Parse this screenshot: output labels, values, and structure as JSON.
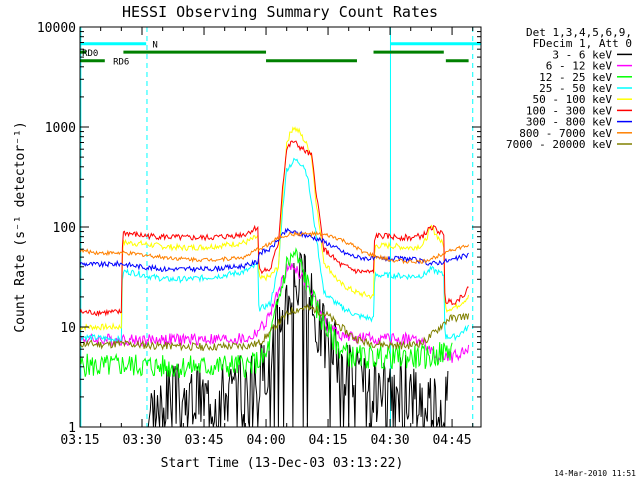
{
  "chart_data": {
    "type": "line",
    "title": "HESSI Observing Summary Count Rates",
    "xlabel": "Start Time (13-Dec-03 03:13:22)",
    "ylabel": "Count Rate (s⁻¹ detector⁻¹)",
    "scale_y": "log",
    "xlim_minutes": [
      195,
      292
    ],
    "ylim": [
      1,
      10000
    ],
    "x_ticks": [
      {
        "t": 195,
        "label": "03:15"
      },
      {
        "t": 210,
        "label": "03:30"
      },
      {
        "t": 225,
        "label": "03:45"
      },
      {
        "t": 240,
        "label": "04:00"
      },
      {
        "t": 255,
        "label": "04:15"
      },
      {
        "t": 270,
        "label": "04:30"
      },
      {
        "t": 285,
        "label": "04:45"
      }
    ],
    "y_ticks": [
      {
        "v": 1,
        "label": "1"
      },
      {
        "v": 10,
        "label": "10"
      },
      {
        "v": 100,
        "label": "100"
      },
      {
        "v": 1000,
        "label": "1000"
      },
      {
        "v": 10000,
        "label": "10000"
      }
    ],
    "legend": {
      "placement": "right",
      "header": [
        "Det 1,3,4,5,6,9,",
        "FDecim 1, Att 0"
      ]
    },
    "series": [
      {
        "name": "3 - 6 keV",
        "color": "#000000",
        "points": [
          [
            211,
            1
          ],
          [
            212,
            1.5
          ],
          [
            216,
            2
          ],
          [
            220,
            2
          ],
          [
            225,
            2
          ],
          [
            230,
            2.3
          ],
          [
            236,
            2.4
          ],
          [
            239,
            3.5
          ],
          [
            242,
            8
          ],
          [
            245,
            20
          ],
          [
            247,
            33
          ],
          [
            249,
            28
          ],
          [
            252,
            12
          ],
          [
            255,
            7
          ],
          [
            258,
            5
          ],
          [
            262,
            3
          ],
          [
            265,
            2
          ],
          [
            268,
            2
          ],
          [
            271,
            2.5
          ],
          [
            275,
            2.3
          ],
          [
            280,
            2
          ],
          [
            284,
            2
          ]
        ]
      },
      {
        "name": "6 - 12 keV",
        "color": "#ff00ff",
        "points": [
          [
            195,
            7.5
          ],
          [
            200,
            7.5
          ],
          [
            205,
            7.5
          ],
          [
            210,
            7.4
          ],
          [
            215,
            7.5
          ],
          [
            220,
            7.5
          ],
          [
            225,
            7.6
          ],
          [
            230,
            7.5
          ],
          [
            236,
            7.6
          ],
          [
            240,
            11
          ],
          [
            243,
            22
          ],
          [
            245,
            38
          ],
          [
            247,
            40
          ],
          [
            249,
            30
          ],
          [
            252,
            18
          ],
          [
            255,
            10
          ],
          [
            258,
            8.5
          ],
          [
            261,
            7.8
          ],
          [
            266,
            7.6
          ],
          [
            270,
            7.6
          ],
          [
            275,
            7.6
          ],
          [
            278,
            7
          ],
          [
            281,
            5
          ],
          [
            285,
            5
          ],
          [
            289,
            6
          ]
        ]
      },
      {
        "name": "12 - 25 keV",
        "color": "#00ff00",
        "points": [
          [
            195,
            4.2
          ],
          [
            200,
            4
          ],
          [
            205,
            4.2
          ],
          [
            210,
            4.1
          ],
          [
            215,
            4
          ],
          [
            220,
            4
          ],
          [
            225,
            4
          ],
          [
            230,
            4.1
          ],
          [
            236,
            4.1
          ],
          [
            240,
            5
          ],
          [
            243,
            18
          ],
          [
            245,
            42
          ],
          [
            247,
            54
          ],
          [
            249,
            35
          ],
          [
            252,
            16
          ],
          [
            255,
            9
          ],
          [
            258,
            6
          ],
          [
            261,
            5
          ],
          [
            266,
            5
          ],
          [
            270,
            5
          ],
          [
            275,
            5
          ],
          [
            280,
            5
          ],
          [
            285,
            6
          ]
        ]
      },
      {
        "name": "25 - 50 keV",
        "color": "#00ffff",
        "points": [
          [
            195,
            8
          ],
          [
            205,
            7.5
          ],
          [
            205.3,
            36
          ],
          [
            208,
            35
          ],
          [
            212,
            32
          ],
          [
            216,
            30
          ],
          [
            220,
            30
          ],
          [
            225,
            31
          ],
          [
            230,
            33
          ],
          [
            235,
            36
          ],
          [
            238,
            42
          ],
          [
            238.3,
            15
          ],
          [
            241,
            17
          ],
          [
            243,
            40
          ],
          [
            244,
            150
          ],
          [
            245,
            380
          ],
          [
            247,
            470
          ],
          [
            249,
            420
          ],
          [
            250,
            330
          ],
          [
            252,
            90
          ],
          [
            254,
            22
          ],
          [
            258,
            16
          ],
          [
            262,
            13
          ],
          [
            266,
            12
          ],
          [
            266.3,
            33
          ],
          [
            270,
            33
          ],
          [
            275,
            32
          ],
          [
            278,
            33
          ],
          [
            280,
            38
          ],
          [
            283,
            33
          ],
          [
            283.3,
            8
          ],
          [
            286,
            8
          ],
          [
            289,
            10
          ]
        ]
      },
      {
        "name": "50 - 100 keV",
        "color": "#ffff00",
        "points": [
          [
            195,
            10
          ],
          [
            205,
            10
          ],
          [
            205.3,
            70
          ],
          [
            210,
            68
          ],
          [
            215,
            64
          ],
          [
            220,
            62
          ],
          [
            225,
            63
          ],
          [
            230,
            66
          ],
          [
            235,
            70
          ],
          [
            238,
            80
          ],
          [
            238.3,
            30
          ],
          [
            241,
            32
          ],
          [
            243,
            40
          ],
          [
            244,
            200
          ],
          [
            245,
            700
          ],
          [
            246.5,
            1000
          ],
          [
            248,
            900
          ],
          [
            250,
            650
          ],
          [
            251,
            520
          ],
          [
            252,
            200
          ],
          [
            254,
            45
          ],
          [
            258,
            27
          ],
          [
            262,
            22
          ],
          [
            266,
            20
          ],
          [
            266.3,
            65
          ],
          [
            270,
            65
          ],
          [
            275,
            62
          ],
          [
            278,
            66
          ],
          [
            280,
            100
          ],
          [
            282,
            75
          ],
          [
            283,
            65
          ],
          [
            283.3,
            15
          ],
          [
            286,
            16
          ],
          [
            289,
            20
          ]
        ]
      },
      {
        "name": "100 - 300 keV",
        "color": "#ff0000",
        "points": [
          [
            195,
            14
          ],
          [
            205,
            14
          ],
          [
            205.3,
            88
          ],
          [
            210,
            82
          ],
          [
            215,
            80
          ],
          [
            220,
            78
          ],
          [
            225,
            78
          ],
          [
            230,
            80
          ],
          [
            235,
            85
          ],
          [
            238,
            100
          ],
          [
            238.3,
            37
          ],
          [
            241,
            37
          ],
          [
            243,
            70
          ],
          [
            244,
            250
          ],
          [
            245,
            600
          ],
          [
            246.5,
            720
          ],
          [
            248,
            640
          ],
          [
            250,
            550
          ],
          [
            251,
            520
          ],
          [
            252,
            250
          ],
          [
            254,
            60
          ],
          [
            258,
            42
          ],
          [
            262,
            36
          ],
          [
            266,
            35
          ],
          [
            266.3,
            82
          ],
          [
            270,
            80
          ],
          [
            275,
            78
          ],
          [
            278,
            82
          ],
          [
            280,
            100
          ],
          [
            282,
            90
          ],
          [
            283,
            80
          ],
          [
            283.3,
            18
          ],
          [
            286,
            18
          ],
          [
            289,
            24
          ]
        ]
      },
      {
        "name": "300 - 800 keV",
        "color": "#0000ff",
        "points": [
          [
            195,
            43
          ],
          [
            200,
            42
          ],
          [
            205,
            43
          ],
          [
            210,
            40
          ],
          [
            215,
            38
          ],
          [
            220,
            38
          ],
          [
            225,
            38
          ],
          [
            230,
            39
          ],
          [
            235,
            41
          ],
          [
            238,
            45
          ],
          [
            238.3,
            55
          ],
          [
            241,
            60
          ],
          [
            243,
            75
          ],
          [
            245,
            92
          ],
          [
            247,
            88
          ],
          [
            250,
            82
          ],
          [
            253,
            75
          ],
          [
            256,
            65
          ],
          [
            259,
            55
          ],
          [
            262,
            50
          ],
          [
            266,
            48
          ],
          [
            270,
            48
          ],
          [
            275,
            48
          ],
          [
            280,
            43
          ],
          [
            283,
            45
          ],
          [
            286,
            48
          ],
          [
            289,
            53
          ]
        ]
      },
      {
        "name": "800 - 7000 keV",
        "color": "#ff8000",
        "points": [
          [
            195,
            58
          ],
          [
            200,
            55
          ],
          [
            205,
            55
          ],
          [
            210,
            53
          ],
          [
            215,
            50
          ],
          [
            220,
            48
          ],
          [
            225,
            47
          ],
          [
            230,
            48
          ],
          [
            235,
            50
          ],
          [
            238,
            60
          ],
          [
            241,
            68
          ],
          [
            243,
            78
          ],
          [
            246,
            85
          ],
          [
            249,
            85
          ],
          [
            252,
            85
          ],
          [
            255,
            82
          ],
          [
            258,
            75
          ],
          [
            261,
            65
          ],
          [
            264,
            55
          ],
          [
            267,
            50
          ],
          [
            270,
            47
          ],
          [
            274,
            45
          ],
          [
            278,
            45
          ],
          [
            281,
            50
          ],
          [
            284,
            58
          ],
          [
            289,
            65
          ]
        ]
      },
      {
        "name": "7000 - 20000 keV",
        "color": "#808000",
        "points": [
          [
            195,
            6.8
          ],
          [
            200,
            6.7
          ],
          [
            205,
            6.8
          ],
          [
            210,
            6.6
          ],
          [
            215,
            6.5
          ],
          [
            220,
            6.4
          ],
          [
            225,
            6.3
          ],
          [
            230,
            6.4
          ],
          [
            235,
            6.5
          ],
          [
            238,
            6.8
          ],
          [
            240,
            8
          ],
          [
            243,
            11
          ],
          [
            246,
            14.5
          ],
          [
            249,
            15.5
          ],
          [
            252,
            15
          ],
          [
            255,
            13
          ],
          [
            258,
            10
          ],
          [
            261,
            8
          ],
          [
            264,
            7
          ],
          [
            267,
            6.8
          ],
          [
            270,
            6.6
          ],
          [
            274,
            6.5
          ],
          [
            278,
            7
          ],
          [
            281,
            9
          ],
          [
            284,
            12
          ],
          [
            289,
            13
          ]
        ]
      }
    ],
    "state_bars": [
      {
        "label": "N",
        "color": "#00ffff",
        "value": 6800,
        "segments": [
          [
            195,
            211
          ],
          [
            270,
            292
          ]
        ],
        "label_t": 212.5
      },
      {
        "label": "RD0",
        "color": "#008000",
        "value": 5600,
        "segments": [
          [
            195,
            196.5
          ],
          [
            205.5,
            240
          ],
          [
            266,
            283
          ]
        ],
        "label_t": 195.5
      },
      {
        "label": "RD6",
        "color": "#008000",
        "value": 4600,
        "segments": [
          [
            195,
            201
          ],
          [
            240,
            262
          ],
          [
            283.5,
            289
          ]
        ],
        "label_t": 203
      }
    ],
    "solid_markers": [
      195.2,
      270.1
    ],
    "dashed_markers": [
      211.2,
      290.0
    ],
    "grid": false
  },
  "footer": {
    "date_stamp": "14-Mar-2010 11:51"
  }
}
